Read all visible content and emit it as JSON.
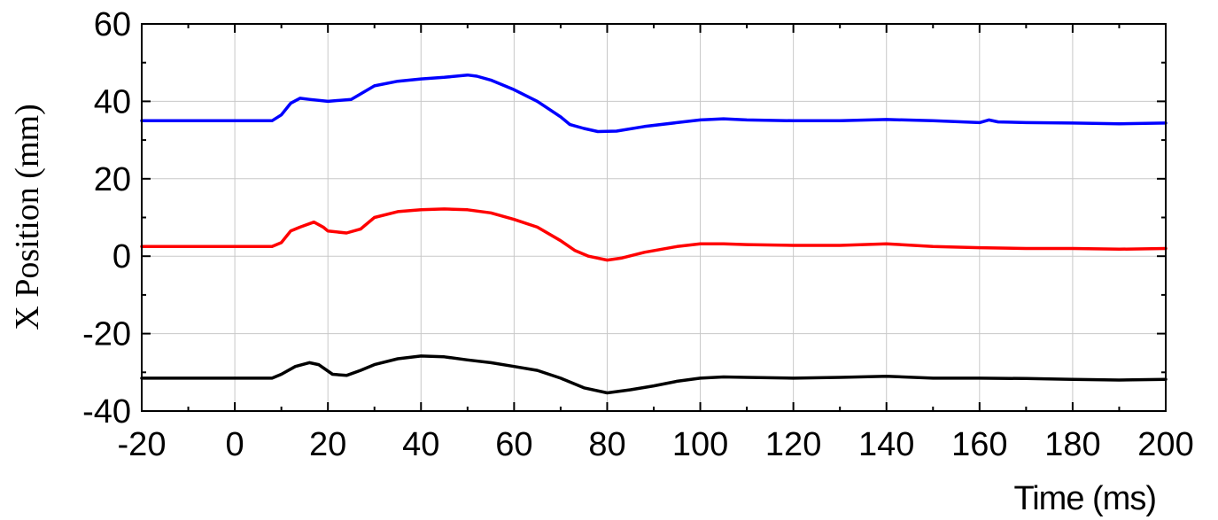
{
  "chart_data": {
    "type": "line",
    "title": "",
    "xlabel": "Time (ms)",
    "ylabel": "X Position (mm)",
    "xlim": [
      -20,
      200
    ],
    "ylim": [
      -40,
      60
    ],
    "x_ticks": [
      -20,
      0,
      20,
      40,
      60,
      80,
      100,
      120,
      140,
      160,
      180,
      200
    ],
    "y_ticks": [
      -40,
      -20,
      0,
      20,
      40,
      60
    ],
    "x_tick_labels": [
      "-20",
      "0",
      "20",
      "40",
      "60",
      "80",
      "100",
      "120",
      "140",
      "160",
      "180",
      "200"
    ],
    "y_tick_labels": [
      "-40",
      "-20",
      "0",
      "20",
      "40",
      "60"
    ],
    "grid": true,
    "series": [
      {
        "color": "#0000ff",
        "points": [
          [
            -20,
            35
          ],
          [
            0,
            35
          ],
          [
            8,
            35
          ],
          [
            10,
            36.5
          ],
          [
            12,
            39.5
          ],
          [
            14,
            40.8
          ],
          [
            16,
            40.5
          ],
          [
            20,
            40
          ],
          [
            25,
            40.5
          ],
          [
            30,
            44
          ],
          [
            35,
            45.2
          ],
          [
            40,
            45.8
          ],
          [
            45,
            46.2
          ],
          [
            50,
            46.8
          ],
          [
            52,
            46.5
          ],
          [
            55,
            45.5
          ],
          [
            60,
            43
          ],
          [
            65,
            40
          ],
          [
            70,
            36
          ],
          [
            72,
            34
          ],
          [
            75,
            33
          ],
          [
            78,
            32.2
          ],
          [
            82,
            32.3
          ],
          [
            88,
            33.5
          ],
          [
            95,
            34.5
          ],
          [
            100,
            35.2
          ],
          [
            105,
            35.5
          ],
          [
            110,
            35.2
          ],
          [
            120,
            35
          ],
          [
            130,
            35
          ],
          [
            140,
            35.3
          ],
          [
            150,
            35
          ],
          [
            160,
            34.5
          ],
          [
            162,
            35.2
          ],
          [
            164,
            34.7
          ],
          [
            170,
            34.5
          ],
          [
            180,
            34.4
          ],
          [
            190,
            34.2
          ],
          [
            200,
            34.4
          ]
        ]
      },
      {
        "color": "#ff0000",
        "points": [
          [
            -20,
            2.5
          ],
          [
            0,
            2.5
          ],
          [
            8,
            2.5
          ],
          [
            10,
            3.5
          ],
          [
            12,
            6.5
          ],
          [
            14,
            7.5
          ],
          [
            17,
            8.8
          ],
          [
            19,
            7.5
          ],
          [
            20,
            6.5
          ],
          [
            24,
            6
          ],
          [
            27,
            7
          ],
          [
            30,
            10
          ],
          [
            35,
            11.5
          ],
          [
            40,
            12
          ],
          [
            45,
            12.2
          ],
          [
            50,
            12
          ],
          [
            55,
            11.2
          ],
          [
            60,
            9.5
          ],
          [
            65,
            7.5
          ],
          [
            70,
            4
          ],
          [
            73,
            1.5
          ],
          [
            76,
            0
          ],
          [
            80,
            -1
          ],
          [
            83,
            -0.5
          ],
          [
            88,
            1
          ],
          [
            95,
            2.5
          ],
          [
            100,
            3.2
          ],
          [
            105,
            3.2
          ],
          [
            110,
            3
          ],
          [
            120,
            2.8
          ],
          [
            130,
            2.8
          ],
          [
            140,
            3.2
          ],
          [
            150,
            2.5
          ],
          [
            160,
            2.2
          ],
          [
            170,
            2
          ],
          [
            180,
            2
          ],
          [
            190,
            1.8
          ],
          [
            200,
            2
          ]
        ]
      },
      {
        "color": "#000000",
        "points": [
          [
            -20,
            -31.5
          ],
          [
            0,
            -31.5
          ],
          [
            8,
            -31.5
          ],
          [
            10,
            -30.5
          ],
          [
            13,
            -28.5
          ],
          [
            16,
            -27.5
          ],
          [
            18,
            -28
          ],
          [
            21,
            -30.5
          ],
          [
            24,
            -30.8
          ],
          [
            27,
            -29.5
          ],
          [
            30,
            -28
          ],
          [
            35,
            -26.5
          ],
          [
            40,
            -25.8
          ],
          [
            45,
            -26
          ],
          [
            50,
            -26.8
          ],
          [
            55,
            -27.5
          ],
          [
            60,
            -28.5
          ],
          [
            65,
            -29.5
          ],
          [
            70,
            -31.5
          ],
          [
            75,
            -34
          ],
          [
            80,
            -35.3
          ],
          [
            85,
            -34.5
          ],
          [
            90,
            -33.5
          ],
          [
            95,
            -32.3
          ],
          [
            100,
            -31.5
          ],
          [
            105,
            -31.2
          ],
          [
            110,
            -31.3
          ],
          [
            120,
            -31.5
          ],
          [
            130,
            -31.3
          ],
          [
            140,
            -31
          ],
          [
            150,
            -31.5
          ],
          [
            160,
            -31.5
          ],
          [
            170,
            -31.6
          ],
          [
            180,
            -31.8
          ],
          [
            190,
            -32
          ],
          [
            200,
            -31.8
          ]
        ]
      }
    ]
  }
}
